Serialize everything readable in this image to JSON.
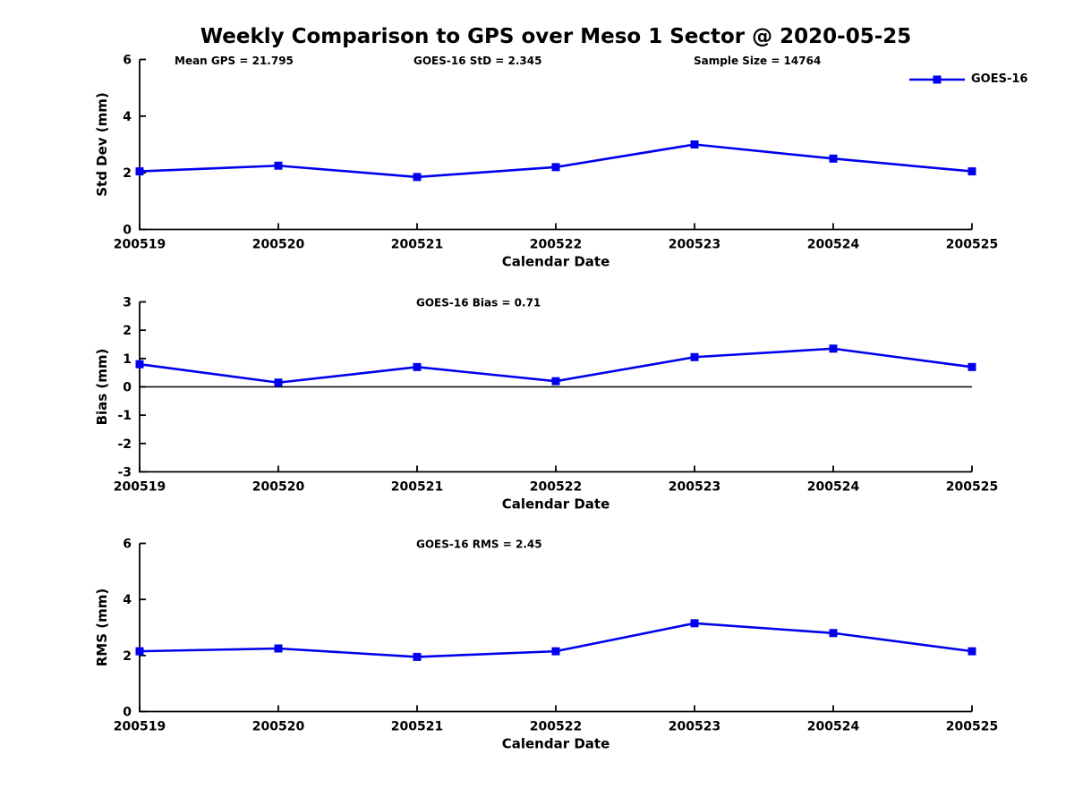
{
  "figure": {
    "title": "Weekly Comparison to GPS over Meso 1 Sector @ 2020-05-25",
    "header_annotations": [
      {
        "text": "Mean GPS = 21.795"
      },
      {
        "text": "GOES-16 StD = 2.345"
      },
      {
        "text": "Sample Size = 14764"
      }
    ],
    "legend": {
      "label": "GOES-16",
      "position": "upper right"
    },
    "colors": {
      "series": "#0000ee",
      "axis": "#000000",
      "text": "#000000",
      "background": "#ffffff"
    }
  },
  "chart_data": [
    {
      "type": "line",
      "title": "",
      "categories": [
        "200519",
        "200520",
        "200521",
        "200522",
        "200523",
        "200524",
        "200525"
      ],
      "series": [
        {
          "name": "GOES-16",
          "values": [
            2.05,
            2.25,
            1.85,
            2.2,
            3.0,
            2.5,
            2.05
          ]
        }
      ],
      "xlabel": "Calendar Date",
      "ylabel": "Std Dev (mm)",
      "ylim": [
        0,
        6
      ],
      "yticks": [
        0,
        2,
        4,
        6
      ],
      "annotation": null,
      "zero_line": false,
      "grid": false,
      "marker": "square",
      "line_color": "#0000ee"
    },
    {
      "type": "line",
      "title": "",
      "categories": [
        "200519",
        "200520",
        "200521",
        "200522",
        "200523",
        "200524",
        "200525"
      ],
      "series": [
        {
          "name": "GOES-16",
          "values": [
            0.8,
            0.15,
            0.7,
            0.2,
            1.05,
            1.35,
            0.7
          ]
        }
      ],
      "xlabel": "Calendar Date",
      "ylabel": "Bias (mm)",
      "ylim": [
        -3,
        3
      ],
      "yticks": [
        -3,
        -2,
        -1,
        0,
        1,
        2,
        3
      ],
      "annotation": "GOES-16 Bias  = 0.71",
      "zero_line": true,
      "grid": false,
      "marker": "square",
      "line_color": "#0000ee"
    },
    {
      "type": "line",
      "title": "",
      "categories": [
        "200519",
        "200520",
        "200521",
        "200522",
        "200523",
        "200524",
        "200525"
      ],
      "series": [
        {
          "name": "GOES-16",
          "values": [
            2.15,
            2.25,
            1.95,
            2.15,
            3.15,
            2.8,
            2.15
          ]
        }
      ],
      "xlabel": "Calendar Date",
      "ylabel": "RMS (mm)",
      "ylim": [
        0,
        6
      ],
      "yticks": [
        0,
        2,
        4,
        6
      ],
      "annotation": "GOES-16 RMS = 2.45",
      "zero_line": false,
      "grid": false,
      "marker": "square",
      "line_color": "#0000ee"
    }
  ]
}
